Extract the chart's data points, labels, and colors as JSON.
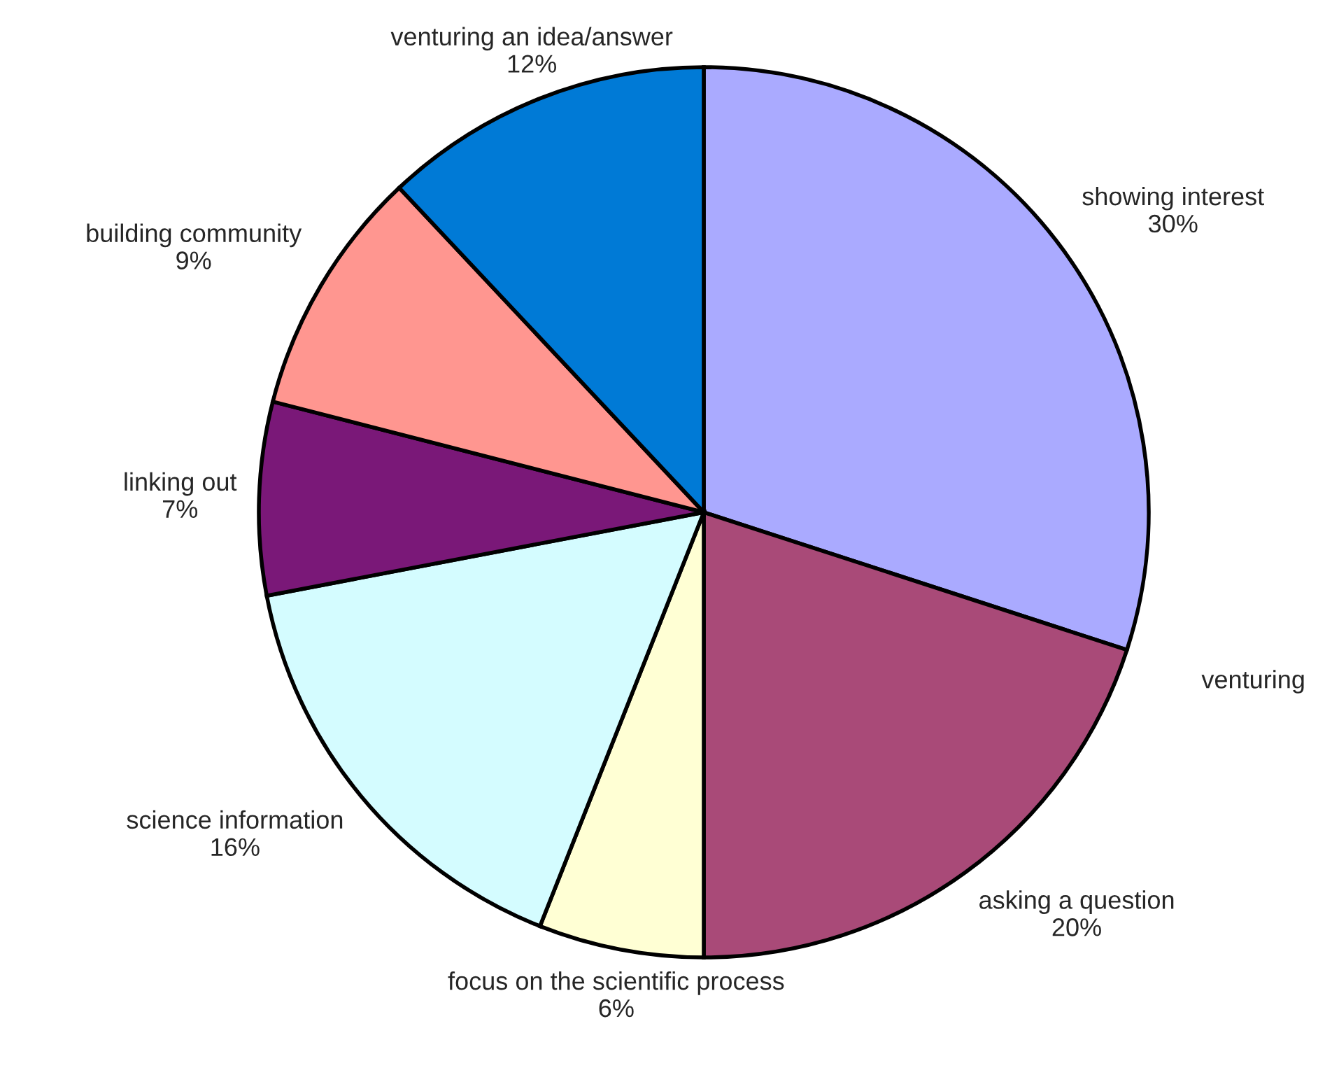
{
  "chart_data": {
    "type": "pie",
    "categories": [
      "showing interest",
      "asking a question",
      "focus on the scientific process",
      "science information",
      "linking out",
      "building community",
      "venturing an idea/answer"
    ],
    "values": [
      30,
      20,
      6,
      16,
      7,
      9,
      12
    ],
    "value_labels": [
      "30%",
      "20%",
      "6%",
      "16%",
      "7%",
      "9%",
      "12%"
    ],
    "colors": [
      "#aaaaff",
      "#a94a78",
      "#ffffd4",
      "#d4fcff",
      "#7a1878",
      "#ff9690",
      "#007ad6"
    ],
    "annotations": [
      "venturing"
    ],
    "legend": false
  }
}
